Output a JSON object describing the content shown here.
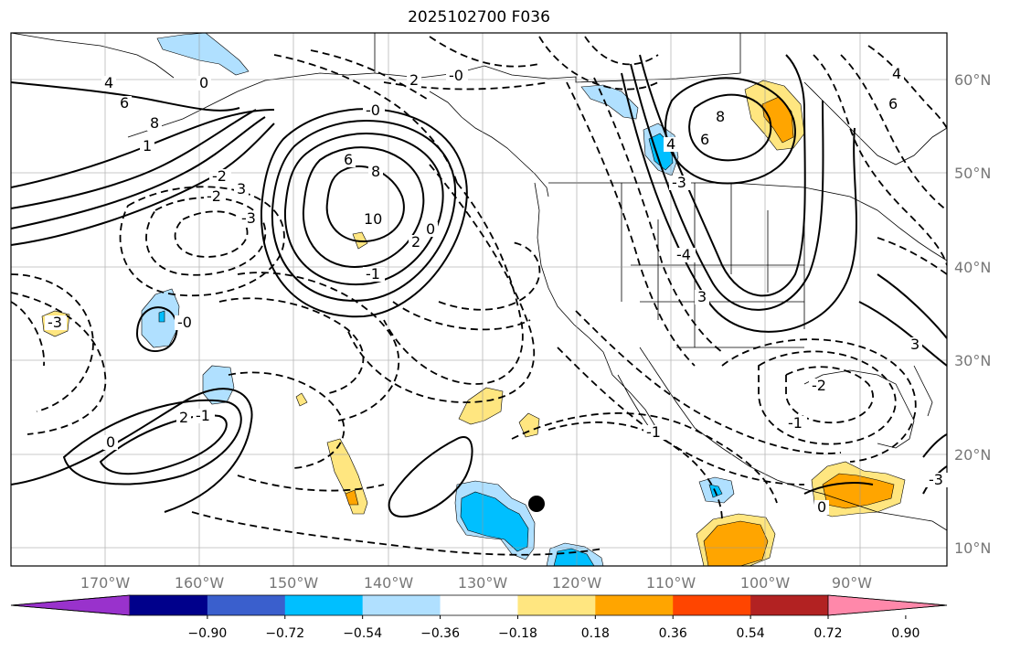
{
  "title": "2025102700 F036",
  "map": {
    "lon_labels": [
      "170°W",
      "160°W",
      "150°W",
      "140°W",
      "130°W",
      "120°W",
      "110°W",
      "100°W",
      "90°W"
    ],
    "lat_labels": [
      "60°N",
      "50°N",
      "40°N",
      "30°N",
      "20°N",
      "10°N"
    ],
    "contour_labels": [
      "4",
      "6",
      "8",
      "0",
      "-0",
      "2",
      "-2",
      "3",
      "-3",
      "6",
      "8",
      "10",
      "-1",
      "1",
      "2",
      "0",
      "-0",
      "-1",
      "8",
      "6",
      "4",
      "-3",
      "-4",
      "3",
      "0",
      "-2",
      "-0",
      "2",
      "-1",
      "0",
      "-3",
      "6",
      "4",
      "-2",
      "-1",
      "3",
      "-3"
    ]
  },
  "colorbar": {
    "tick_labels": [
      "−0.90",
      "−0.72",
      "−0.54",
      "−0.36",
      "−0.18",
      "0.18",
      "0.36",
      "0.54",
      "0.72",
      "0.90"
    ],
    "colors": [
      "#9932cc",
      "#00008b",
      "#3a5fcd",
      "#00bfff",
      "#b0e0ff",
      "#ffffff",
      "#ffe680",
      "#ffa500",
      "#ff4500",
      "#b22222",
      "#ff88aa"
    ]
  }
}
